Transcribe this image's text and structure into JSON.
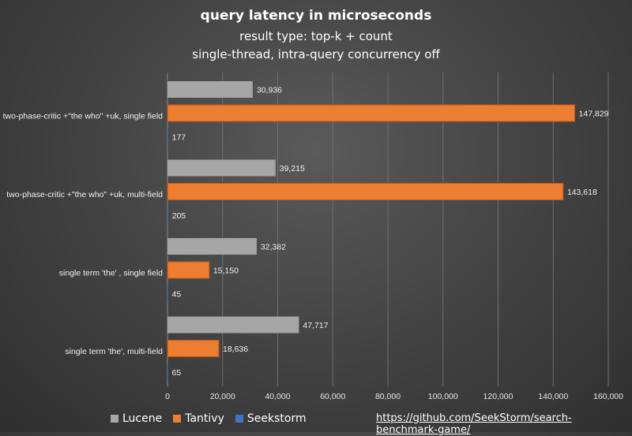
{
  "title": "query latency in microseconds",
  "subtitle1": "result type: top-k + count",
  "subtitle2": "single-thread, intra-query concurrency off",
  "source_link": "https://github.com/SeekStorm/search-benchmark-game/",
  "colors": {
    "Lucene": "#a6a6a6",
    "Tantivy": "#ed7d31",
    "Seekstorm": "#4472c4"
  },
  "chart_data": {
    "type": "bar",
    "orientation": "horizontal",
    "categories": [
      "two-phase-critic +\"the who\" +uk, single field",
      "two-phase-critic +\"the who\" +uk, multi-field",
      "single term 'the' , single field",
      "single term 'the', multi-field"
    ],
    "series": [
      {
        "name": "Lucene",
        "values": [
          30936,
          39215,
          32382,
          47717
        ],
        "labels": [
          "30,936",
          "39,215",
          "32,382",
          "47,717"
        ]
      },
      {
        "name": "Tantivy",
        "values": [
          147829,
          143618,
          15150,
          18636
        ],
        "labels": [
          "147,829",
          "143,618",
          "15,150",
          "18,636"
        ]
      },
      {
        "name": "Seekstorm",
        "values": [
          177,
          205,
          45,
          65
        ],
        "labels": [
          "177",
          "205",
          "45",
          "65"
        ]
      }
    ],
    "xlim": [
      0,
      160000
    ],
    "xticks": [
      0,
      20000,
      40000,
      60000,
      80000,
      100000,
      120000,
      140000,
      160000
    ],
    "xtick_labels": [
      "0",
      "20,000",
      "40,000",
      "60,000",
      "80,000",
      "100,000",
      "120,000",
      "140,000",
      "160,000"
    ],
    "grid": true,
    "legend_position": "bottom-left"
  }
}
